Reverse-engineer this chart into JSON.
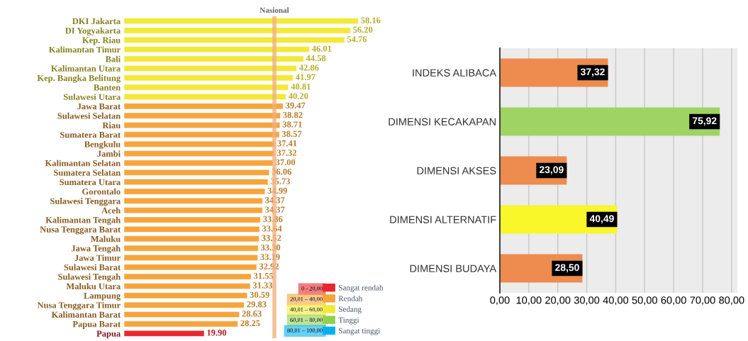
{
  "chart_data": [
    {
      "type": "bar",
      "orientation": "horizontal",
      "tick_labels": "y",
      "legend": "bottom right",
      "categories": [
        "DKI Jakarta",
        "DI Yogyakarta",
        "Kep. Riau",
        "Kalimantan Timur",
        "Bali",
        "Kalimantan Utara",
        "Kep. Bangka Belitung",
        "Banten",
        "Sulawesi Utara",
        "Jawa Barat",
        "Sulawesi Selatan",
        "Riau",
        "Sumatera Barat",
        "Bengkulu",
        "Jambi",
        "Kalimantan Selatan",
        "Sumatera Selatan",
        "Sumatera Utara",
        "Gorontalo",
        "Sulawesi Tenggara",
        "Aceh",
        "Kalimantan Tengah",
        "Nusa Tenggara Barat",
        "Maluku",
        "Jawa Tengah",
        "Jawa Timur",
        "Sulawesi Barat",
        "Sulawesi Tengah",
        "Maluku Utara",
        "Lampung",
        "Nusa Tenggara Timur",
        "Kalimantan Barat",
        "Papua Barat",
        "Papua"
      ],
      "series": [
        {
          "name": "Sangat rendah",
          "color": "#e8262f",
          "values": [
            null,
            null,
            null,
            null,
            null,
            null,
            null,
            null,
            null,
            null,
            null,
            null,
            null,
            null,
            null,
            null,
            null,
            null,
            null,
            null,
            null,
            null,
            null,
            null,
            null,
            null,
            null,
            null,
            null,
            null,
            null,
            null,
            null,
            19.9
          ],
          "value_labels": [
            null,
            null,
            null,
            null,
            null,
            null,
            null,
            null,
            null,
            null,
            null,
            null,
            null,
            null,
            null,
            null,
            null,
            null,
            null,
            null,
            null,
            null,
            null,
            null,
            null,
            null,
            null,
            null,
            null,
            null,
            null,
            null,
            null,
            "19.90"
          ]
        },
        {
          "name": "Rendah",
          "color": "#f5a53c",
          "values": [
            null,
            null,
            null,
            null,
            null,
            null,
            null,
            null,
            null,
            39.47,
            38.82,
            38.71,
            38.57,
            37.41,
            37.32,
            37.0,
            36.06,
            35.73,
            34.99,
            34.37,
            34.37,
            33.86,
            33.64,
            33.52,
            33.3,
            33.19,
            32.92,
            31.55,
            31.33,
            30.59,
            29.83,
            28.63,
            28.25,
            null
          ],
          "value_labels": [
            null,
            null,
            null,
            null,
            null,
            null,
            null,
            null,
            null,
            "39.47",
            "38.82",
            "38.71",
            "38.57",
            "37.41",
            "37.32",
            "37.00",
            "36.06",
            "35.73",
            "34.99",
            "34.37",
            "34.37",
            "33.86",
            "33.64",
            "33.52",
            "33.30",
            "33.19",
            "32.92",
            "31.55",
            "31.33",
            "30.59",
            "29.83",
            "28.63",
            "28.25",
            null
          ]
        },
        {
          "name": "Sedang",
          "color": "#f2e838",
          "values": [
            58.16,
            56.2,
            54.76,
            46.01,
            44.58,
            42.86,
            41.97,
            40.81,
            40.2,
            null,
            null,
            null,
            null,
            null,
            null,
            null,
            null,
            null,
            null,
            null,
            null,
            null,
            null,
            null,
            null,
            null,
            null,
            null,
            null,
            null,
            null,
            null,
            null,
            null
          ],
          "value_labels": [
            "58.16",
            "56.20",
            "54.76",
            "46.01",
            "44.58",
            "42.86",
            "41.97",
            "40.81",
            "40.20",
            null,
            null,
            null,
            null,
            null,
            null,
            null,
            null,
            null,
            null,
            null,
            null,
            null,
            null,
            null,
            null,
            null,
            null,
            null,
            null,
            null,
            null,
            null,
            null,
            null
          ]
        },
        {
          "name": "Tinggi",
          "color": "#92d050",
          "values": [
            null,
            null,
            null,
            null,
            null,
            null,
            null,
            null,
            null,
            null,
            null,
            null,
            null,
            null,
            null,
            null,
            null,
            null,
            null,
            null,
            null,
            null,
            null,
            null,
            null,
            null,
            null,
            null,
            null,
            null,
            null,
            null,
            null,
            null
          ]
        },
        {
          "name": "Sangat tinggi",
          "color": "#00b0f0",
          "values": [
            null,
            null,
            null,
            null,
            null,
            null,
            null,
            null,
            null,
            null,
            null,
            null,
            null,
            null,
            null,
            null,
            null,
            null,
            null,
            null,
            null,
            null,
            null,
            null,
            null,
            null,
            null,
            null,
            null,
            null,
            null,
            null,
            null,
            null
          ]
        }
      ],
      "ref_lines": [
        {
          "axis": "x",
          "value": 37.32,
          "label": "Nasional",
          "color": "#f0b07c"
        }
      ],
      "annotations": [
        "0 - 20,00",
        "20,01 – 40,00",
        "40,01 – 60,00",
        "60,01 – 80,00",
        "80,01 – 100,00"
      ]
    },
    {
      "type": "bar",
      "orientation": "horizontal",
      "grid": "x",
      "categories": [
        "INDEKS ALIBACA",
        "DIMENSI KECAKAPAN",
        "DIMENSI AKSES",
        "DIMENSI ALTERNATIF",
        "DIMENSI BUDAYA"
      ],
      "values": [
        37.32,
        75.92,
        23.09,
        40.49,
        28.5
      ],
      "colors": [
        "#ed8c4e",
        "#9fd464",
        "#ed8c4e",
        "#f9f62a",
        "#ed8c4e"
      ],
      "value_labels": [
        "37,32",
        "75,92",
        "23,09",
        "40,49",
        "28,50"
      ],
      "xlim": [
        0,
        82
      ],
      "xticks": [
        {
          "value": 0,
          "label": "0,00"
        },
        {
          "value": 10,
          "label": "10,00"
        },
        {
          "value": 20,
          "label": "20,00"
        },
        {
          "value": 30,
          "label": "30,00"
        },
        {
          "value": 40,
          "label": "40,00"
        },
        {
          "value": 50,
          "label": "50,00"
        },
        {
          "value": 60,
          "label": "60,00"
        },
        {
          "value": 70,
          "label": "70,00"
        },
        {
          "value": 80,
          "label": "80,00"
        }
      ]
    }
  ]
}
